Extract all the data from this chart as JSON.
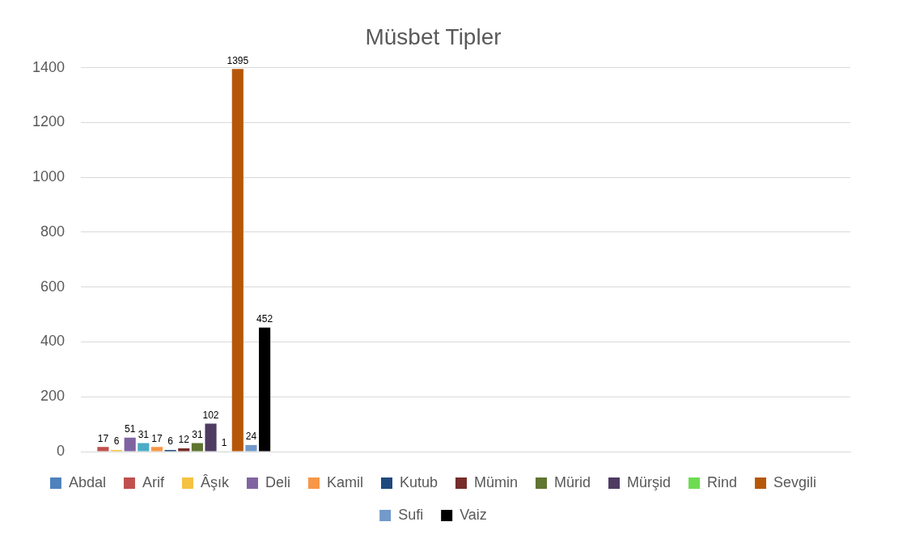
{
  "chart_data": {
    "type": "bar",
    "title": "Müsbet Tipler",
    "categories": [
      null,
      null,
      null,
      null
    ],
    "ylim": [
      0,
      1400
    ],
    "yticks": [
      0,
      200,
      400,
      600,
      800,
      1000,
      1200,
      1400
    ],
    "grid": "y",
    "legend": "bottom",
    "data_labels": true,
    "tick_labels": "y",
    "series": [
      {
        "name": "Abdal",
        "color": "#4f81bd",
        "values": [
          null,
          null,
          null,
          null
        ]
      },
      {
        "name": "Arif",
        "color": "#c0504d",
        "values": [
          17,
          null,
          null,
          null
        ]
      },
      {
        "name": "Âşık",
        "color": "#f5c242",
        "values": [
          6,
          null,
          null,
          null
        ]
      },
      {
        "name": "Deli",
        "color": "#8064a2",
        "values": [
          51,
          null,
          null,
          null
        ]
      },
      {
        "color": "#4bacc6",
        "values": [
          31,
          null,
          null,
          null
        ]
      },
      {
        "name": "Kamil",
        "color": "#f79646",
        "values": [
          17,
          null,
          null,
          null
        ]
      },
      {
        "name": "Kutub",
        "color": "#1f497d",
        "values": [
          6,
          null,
          null,
          null
        ]
      },
      {
        "name": "Mümin",
        "color": "#772c2a",
        "values": [
          12,
          null,
          null,
          null
        ]
      },
      {
        "name": "Mürid",
        "color": "#5f7530",
        "values": [
          31,
          null,
          null,
          null
        ]
      },
      {
        "name": "Mürşid",
        "color": "#4d3b62",
        "values": [
          102,
          null,
          null,
          null
        ]
      },
      {
        "name": "Rind",
        "color": "#6ddc52",
        "values": [
          1,
          null,
          null,
          null
        ]
      },
      {
        "name": "Sevgili",
        "color": "#b65708",
        "values": [
          1395,
          null,
          null,
          null
        ]
      },
      {
        "name": "Sufi",
        "color": "#729aca",
        "values": [
          24,
          null,
          null,
          null
        ]
      },
      {
        "name": "Vaiz",
        "color": "#000000",
        "values": [
          452,
          null,
          null,
          null
        ]
      }
    ]
  }
}
